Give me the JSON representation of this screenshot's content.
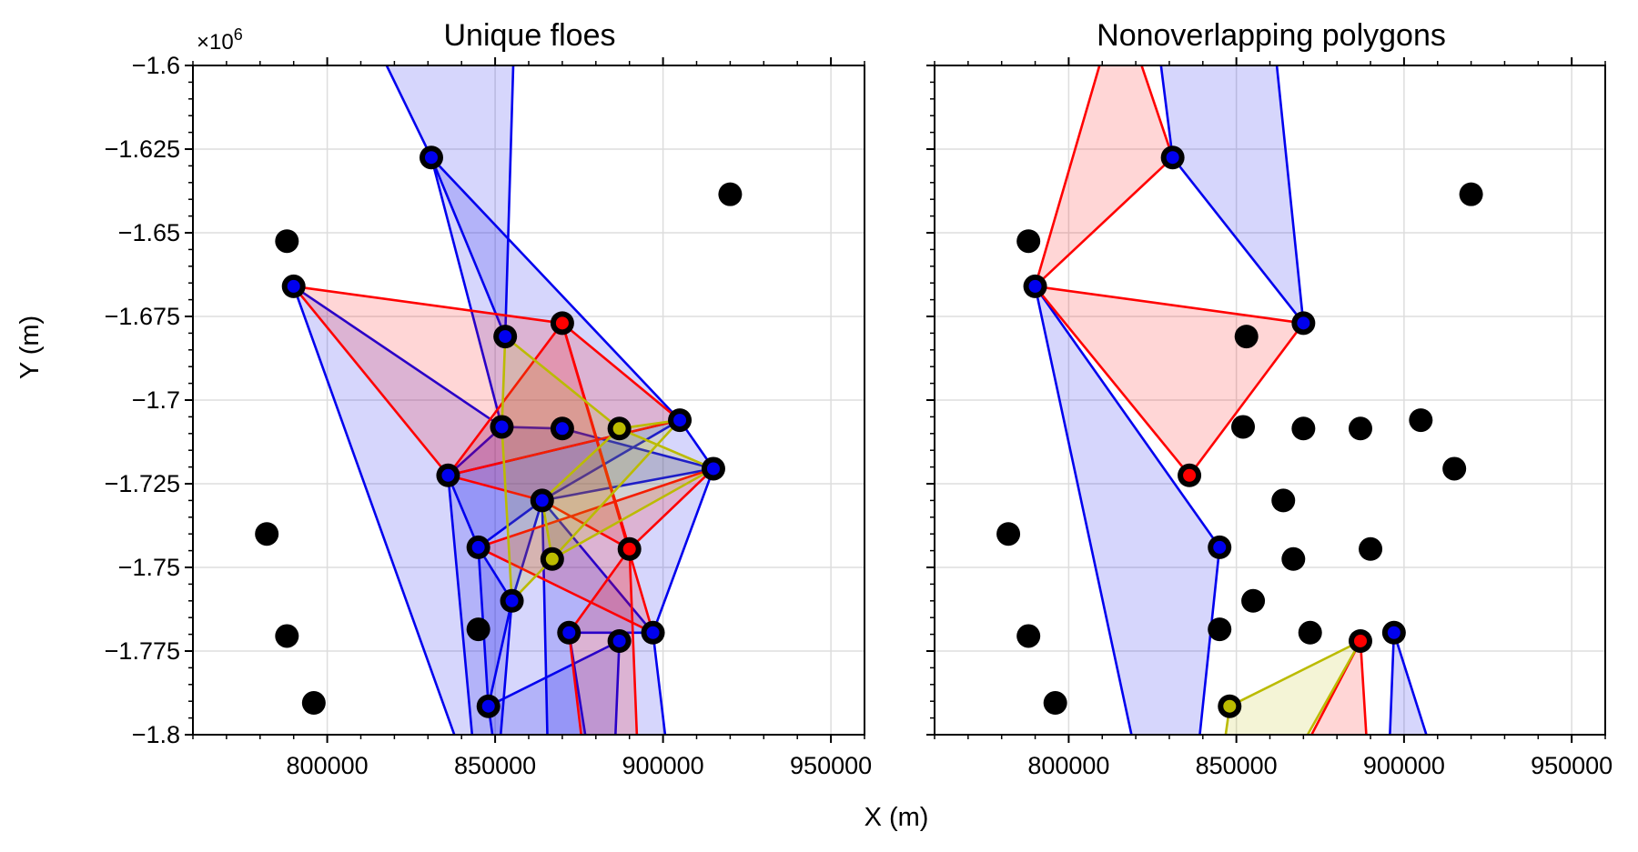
{
  "x_label": "X (m)",
  "y_label": "Y (m)",
  "y_offset_label": "×10",
  "y_offset_exponent": "6",
  "chart_data": [
    {
      "type": "scatter",
      "title": "Unique floes",
      "xlabel": "X (m)",
      "ylabel": "Y (m)",
      "xlim": [
        760000,
        960000
      ],
      "ylim": [
        -1.8,
        -1.6
      ],
      "y_scale_note": "×10^6",
      "x_ticks": [
        800000,
        850000,
        900000,
        950000
      ],
      "x_tick_labels": [
        "800000",
        "850000",
        "900000",
        "950000"
      ],
      "y_ticks": [
        -1.6,
        -1.625,
        -1.65,
        -1.675,
        -1.7,
        -1.725,
        -1.75,
        -1.775,
        -1.8
      ],
      "y_tick_labels": [
        "−1.6",
        "−1.625",
        "−1.65",
        "−1.675",
        "−1.7",
        "−1.725",
        "−1.75",
        "−1.775",
        "−1.8"
      ],
      "grid": true,
      "points": [
        [
          831000,
          -1.6275
        ],
        [
          920000,
          -1.6385
        ],
        [
          788000,
          -1.6525
        ],
        [
          790000,
          -1.666
        ],
        [
          853000,
          -1.681
        ],
        [
          870000,
          -1.677
        ],
        [
          852000,
          -1.708
        ],
        [
          870000,
          -1.7085
        ],
        [
          887000,
          -1.7085
        ],
        [
          905000,
          -1.706
        ],
        [
          915000,
          -1.7205
        ],
        [
          836000,
          -1.7225
        ],
        [
          864000,
          -1.73
        ],
        [
          845000,
          -1.744
        ],
        [
          867000,
          -1.7475
        ],
        [
          890000,
          -1.7445
        ],
        [
          782000,
          -1.74
        ],
        [
          855000,
          -1.76
        ],
        [
          845000,
          -1.7685
        ],
        [
          872000,
          -1.7695
        ],
        [
          887000,
          -1.772
        ],
        [
          897000,
          -1.7695
        ],
        [
          788000,
          -1.7705
        ],
        [
          796000,
          -1.7905
        ],
        [
          848000,
          -1.7915
        ]
      ],
      "polygons": [
        {
          "color": "#0000ee",
          "vertices": [
            [
              808000,
              -1.58
            ],
            [
              831000,
              -1.6275
            ],
            [
              853000,
              -1.681
            ],
            [
              856000,
              -1.58
            ]
          ]
        },
        {
          "color": "#0000ee",
          "vertices": [
            [
              831000,
              -1.6275
            ],
            [
              905000,
              -1.706
            ],
            [
              915000,
              -1.7205
            ],
            [
              897000,
              -1.7695
            ],
            [
              903000,
              -1.82
            ],
            [
              845000,
              -1.82
            ],
            [
              836000,
              -1.7225
            ],
            [
              852000,
              -1.708
            ]
          ]
        },
        {
          "color": "#0000ee",
          "vertices": [
            [
              790000,
              -1.666
            ],
            [
              852000,
              -1.708
            ],
            [
              870000,
              -1.7085
            ],
            [
              915000,
              -1.7205
            ],
            [
              864000,
              -1.73
            ],
            [
              845000,
              -1.744
            ],
            [
              855000,
              -1.76
            ],
            [
              850000,
              -1.82
            ],
            [
              845000,
              -1.82
            ]
          ]
        },
        {
          "color": "#0000ee",
          "vertices": [
            [
              836000,
              -1.7225
            ],
            [
              905000,
              -1.706
            ],
            [
              864000,
              -1.73
            ],
            [
              855000,
              -1.76
            ],
            [
              848000,
              -1.7915
            ],
            [
              845000,
              -1.744
            ]
          ]
        },
        {
          "color": "#0000ee",
          "vertices": [
            [
              848000,
              -1.7915
            ],
            [
              887000,
              -1.772
            ],
            [
              885000,
              -1.82
            ],
            [
              852000,
              -1.82
            ]
          ]
        },
        {
          "color": "#0000ee",
          "vertices": [
            [
              864000,
              -1.73
            ],
            [
              897000,
              -1.7695
            ],
            [
              872000,
              -1.7695
            ],
            [
              880000,
              -1.82
            ],
            [
              866000,
              -1.82
            ]
          ]
        },
        {
          "color": "#ff0000",
          "vertices": [
            [
              790000,
              -1.666
            ],
            [
              870000,
              -1.677
            ],
            [
              905000,
              -1.706
            ],
            [
              836000,
              -1.7225
            ]
          ]
        },
        {
          "color": "#ff0000",
          "vertices": [
            [
              870000,
              -1.677
            ],
            [
              890000,
              -1.7445
            ],
            [
              864000,
              -1.73
            ],
            [
              836000,
              -1.7225
            ]
          ]
        },
        {
          "color": "#ff0000",
          "vertices": [
            [
              870000,
              -1.677
            ],
            [
              897000,
              -1.7695
            ],
            [
              845000,
              -1.744
            ],
            [
              915000,
              -1.7205
            ],
            [
              890000,
              -1.7445
            ]
          ]
        },
        {
          "color": "#ff0000",
          "vertices": [
            [
              890000,
              -1.7445
            ],
            [
              872000,
              -1.7695
            ],
            [
              878000,
              -1.82
            ],
            [
              893000,
              -1.82
            ]
          ]
        },
        {
          "color": "#bbbb00",
          "vertices": [
            [
              853000,
              -1.681
            ],
            [
              887000,
              -1.7085
            ],
            [
              915000,
              -1.7205
            ],
            [
              867000,
              -1.7475
            ],
            [
              855000,
              -1.76
            ],
            [
              852000,
              -1.708
            ]
          ]
        },
        {
          "color": "#bbbb00",
          "vertices": [
            [
              905000,
              -1.706
            ],
            [
              867000,
              -1.7475
            ],
            [
              864000,
              -1.73
            ],
            [
              887000,
              -1.7085
            ]
          ]
        }
      ],
      "highlighted_points": [
        {
          "x": 831000,
          "y": -1.6275,
          "color": "#0000ee"
        },
        {
          "x": 790000,
          "y": -1.666,
          "color": "#0000ee"
        },
        {
          "x": 853000,
          "y": -1.681,
          "color": "#0000ee"
        },
        {
          "x": 870000,
          "y": -1.677,
          "color": "#ff0000"
        },
        {
          "x": 852000,
          "y": -1.708,
          "color": "#0000ee"
        },
        {
          "x": 870000,
          "y": -1.7085,
          "color": "#0000ee"
        },
        {
          "x": 887000,
          "y": -1.7085,
          "color": "#bbbb00"
        },
        {
          "x": 905000,
          "y": -1.706,
          "color": "#0000ee"
        },
        {
          "x": 915000,
          "y": -1.7205,
          "color": "#0000ee"
        },
        {
          "x": 836000,
          "y": -1.7225,
          "color": "#0000ee"
        },
        {
          "x": 864000,
          "y": -1.73,
          "color": "#0000ee"
        },
        {
          "x": 845000,
          "y": -1.744,
          "color": "#0000ee"
        },
        {
          "x": 867000,
          "y": -1.7475,
          "color": "#bbbb00"
        },
        {
          "x": 890000,
          "y": -1.7445,
          "color": "#ff0000"
        },
        {
          "x": 855000,
          "y": -1.76,
          "color": "#0000ee"
        },
        {
          "x": 872000,
          "y": -1.7695,
          "color": "#0000ee"
        },
        {
          "x": 887000,
          "y": -1.772,
          "color": "#0000ee"
        },
        {
          "x": 897000,
          "y": -1.7695,
          "color": "#0000ee"
        },
        {
          "x": 848000,
          "y": -1.7915,
          "color": "#0000ee"
        }
      ]
    },
    {
      "type": "scatter",
      "title": "Nonoverlapping polygons",
      "xlabel": "X (m)",
      "ylabel": "",
      "xlim": [
        760000,
        960000
      ],
      "ylim": [
        -1.8,
        -1.6
      ],
      "x_ticks": [
        800000,
        850000,
        900000,
        950000
      ],
      "x_tick_labels": [
        "800000",
        "850000",
        "900000",
        "950000"
      ],
      "y_ticks": [
        -1.6,
        -1.625,
        -1.65,
        -1.675,
        -1.7,
        -1.725,
        -1.75,
        -1.775,
        -1.8
      ],
      "y_tick_labels": [],
      "grid": true,
      "points": [
        [
          831000,
          -1.6275
        ],
        [
          920000,
          -1.6385
        ],
        [
          788000,
          -1.6525
        ],
        [
          790000,
          -1.666
        ],
        [
          853000,
          -1.681
        ],
        [
          870000,
          -1.677
        ],
        [
          852000,
          -1.708
        ],
        [
          870000,
          -1.7085
        ],
        [
          887000,
          -1.7085
        ],
        [
          905000,
          -1.706
        ],
        [
          915000,
          -1.7205
        ],
        [
          836000,
          -1.7225
        ],
        [
          864000,
          -1.73
        ],
        [
          845000,
          -1.744
        ],
        [
          867000,
          -1.7475
        ],
        [
          890000,
          -1.7445
        ],
        [
          782000,
          -1.74
        ],
        [
          855000,
          -1.76
        ],
        [
          845000,
          -1.7685
        ],
        [
          872000,
          -1.7695
        ],
        [
          887000,
          -1.772
        ],
        [
          897000,
          -1.7695
        ],
        [
          788000,
          -1.7705
        ],
        [
          796000,
          -1.7905
        ],
        [
          848000,
          -1.7915
        ]
      ],
      "polygons": [
        {
          "color": "#0000ee",
          "vertices": [
            [
              825000,
              -1.58
            ],
            [
              831000,
              -1.6275
            ],
            [
              870000,
              -1.677
            ],
            [
              860000,
              -1.58
            ]
          ]
        },
        {
          "color": "#0000ee",
          "vertices": [
            [
              790000,
              -1.666
            ],
            [
              845000,
              -1.744
            ],
            [
              837000,
              -1.82
            ],
            [
              823000,
              -1.82
            ]
          ]
        },
        {
          "color": "#0000ee",
          "vertices": [
            [
              897000,
              -1.7695
            ],
            [
              913000,
              -1.82
            ],
            [
              895000,
              -1.82
            ]
          ]
        },
        {
          "color": "#ff0000",
          "vertices": [
            [
              815000,
              -1.58
            ],
            [
              831000,
              -1.6275
            ],
            [
              790000,
              -1.666
            ]
          ]
        },
        {
          "color": "#ff0000",
          "vertices": [
            [
              790000,
              -1.666
            ],
            [
              870000,
              -1.677
            ],
            [
              836000,
              -1.7225
            ]
          ]
        },
        {
          "color": "#ff0000",
          "vertices": [
            [
              887000,
              -1.772
            ],
            [
              890000,
              -1.82
            ],
            [
              862000,
              -1.82
            ]
          ]
        },
        {
          "color": "#bbbb00",
          "vertices": [
            [
              848000,
              -1.7915
            ],
            [
              887000,
              -1.772
            ],
            [
              860000,
              -1.82
            ],
            [
              844000,
              -1.82
            ]
          ]
        }
      ],
      "highlighted_points": [
        {
          "x": 831000,
          "y": -1.6275,
          "color": "#0000ee"
        },
        {
          "x": 790000,
          "y": -1.666,
          "color": "#0000ee"
        },
        {
          "x": 870000,
          "y": -1.677,
          "color": "#0000ee"
        },
        {
          "x": 836000,
          "y": -1.7225,
          "color": "#ff0000"
        },
        {
          "x": 845000,
          "y": -1.744,
          "color": "#0000ee"
        },
        {
          "x": 887000,
          "y": -1.772,
          "color": "#ff0000"
        },
        {
          "x": 897000,
          "y": -1.7695,
          "color": "#0000ee"
        },
        {
          "x": 848000,
          "y": -1.7915,
          "color": "#bbbb00"
        }
      ]
    }
  ]
}
